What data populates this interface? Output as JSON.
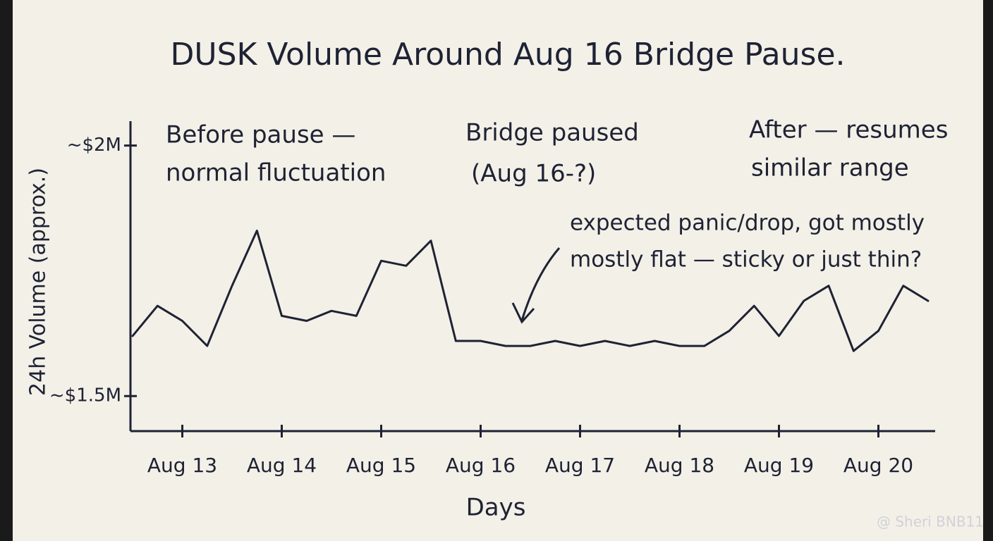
{
  "chart_data": {
    "type": "line",
    "title": "DUSK Volume Around Aug 16 Bridge Pause.",
    "x_label": "Days",
    "y_label": "24h Volume (approx.)",
    "categories": [
      null,
      null,
      "Aug 13",
      null,
      null,
      null,
      "Aug 14",
      null,
      null,
      null,
      "Aug 15",
      null,
      null,
      null,
      "Aug 16",
      null,
      null,
      null,
      "Aug 17",
      null,
      null,
      null,
      "Aug 18",
      null,
      null,
      null,
      "Aug 19",
      null,
      null,
      null,
      "Aug 20",
      null,
      null
    ],
    "series": [
      {
        "color": "#1e2233",
        "values": [
          1620000,
          1680000,
          1650000,
          1600000,
          1720000,
          1830000,
          1660000,
          1650000,
          1670000,
          1660000,
          1770000,
          1760000,
          1810000,
          1610000,
          1610000,
          1600000,
          1600000,
          1610000,
          1600000,
          1610000,
          1600000,
          1610000,
          1600000,
          1600000,
          1630000,
          1680000,
          1620000,
          1690000,
          1720000,
          1590000,
          1630000,
          1720000,
          1690000
        ]
      }
    ],
    "ylim": [
      1430000,
      2050000
    ],
    "yticks": [
      {
        "value": 1500000,
        "label": "~$1.5M"
      },
      {
        "value": 2000000,
        "label": "~$2M"
      }
    ],
    "grid": false,
    "annotations": [
      [
        "Before pause —",
        "normal fluctuation"
      ],
      [
        "Bridge paused",
        "(Aug 16-?)"
      ],
      [
        "After — resumes",
        "similar range"
      ],
      [
        "expected panic/drop, got mostly",
        "mostly flat — sticky or just thin?"
      ]
    ],
    "watermark": "@ Sheri BNB11"
  }
}
